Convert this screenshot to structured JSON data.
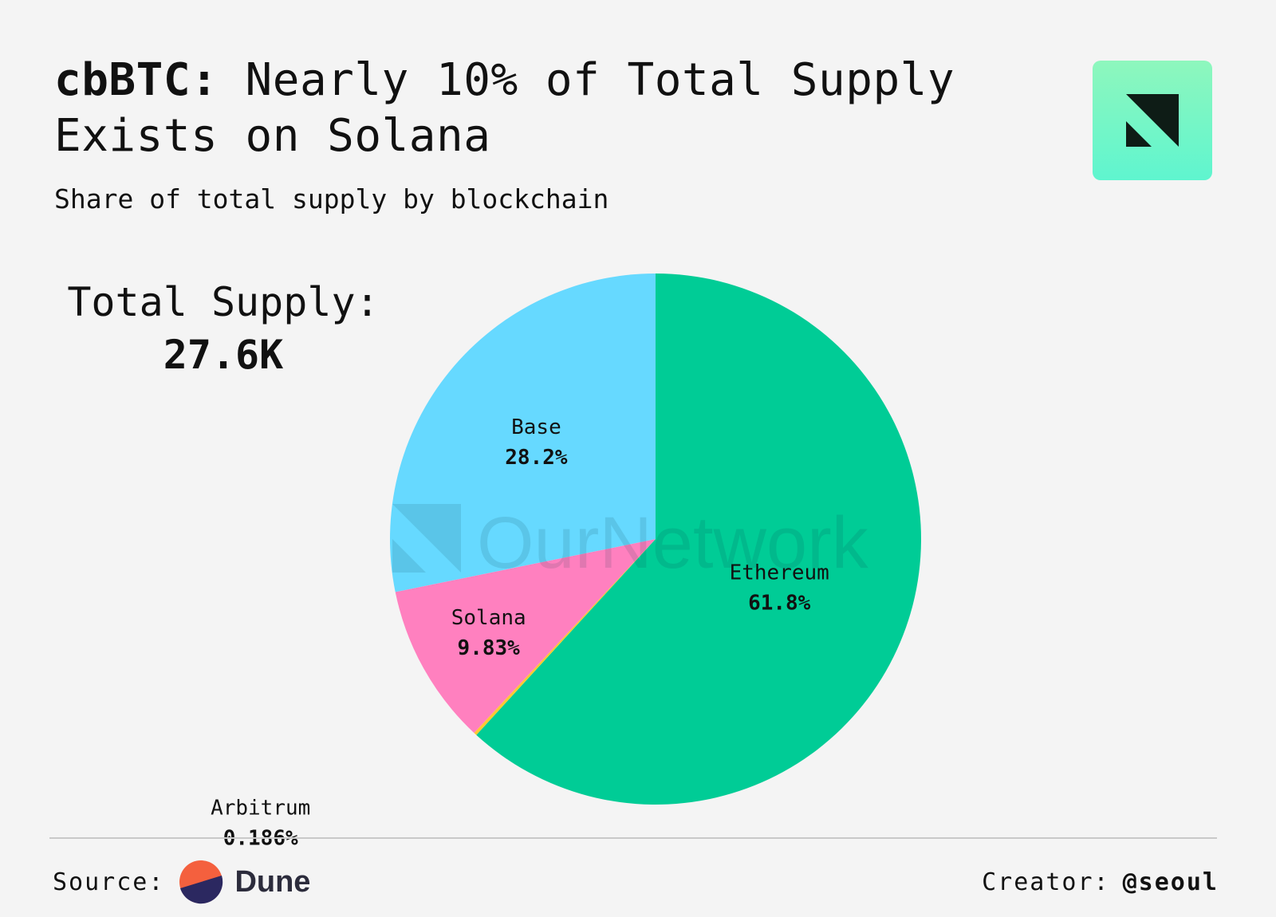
{
  "header": {
    "title_bold": "cbBTC:",
    "title_rest": " Nearly 10% of Total Supply Exists on Solana",
    "subtitle": "Share of total supply by blockchain"
  },
  "total": {
    "label": "Total Supply:",
    "value": "27.6K"
  },
  "watermark": "OurNetwork",
  "footer": {
    "source_label": "Source:",
    "source_name": "Dune",
    "creator_label": "Creator:",
    "creator_handle": "@seoul"
  },
  "colors": {
    "background": "#f4f4f4",
    "ethereum": "#00cc96",
    "base": "#66d9ff",
    "solana": "#ff80bf",
    "arbitrum": "#ffc933",
    "logo_gradient_top": "#8ef7bd",
    "logo_gradient_bottom": "#5ff5cf"
  },
  "chart_data": {
    "type": "pie",
    "title": "cbBTC: Nearly 10% of Total Supply Exists on Solana",
    "subtitle": "Share of total supply by blockchain",
    "slices": [
      {
        "label": "Ethereum",
        "value": 61.8,
        "display": "61.8%",
        "color": "#00cc96"
      },
      {
        "label": "Arbitrum",
        "value": 0.186,
        "display": "0.186%",
        "color": "#ffc933"
      },
      {
        "label": "Solana",
        "value": 9.83,
        "display": "9.83%",
        "color": "#ff80bf"
      },
      {
        "label": "Base",
        "value": 28.2,
        "display": "28.2%",
        "color": "#66d9ff"
      }
    ],
    "start": "12 o'clock",
    "direction": "clockwise",
    "legend": "none (labels on slices)"
  }
}
